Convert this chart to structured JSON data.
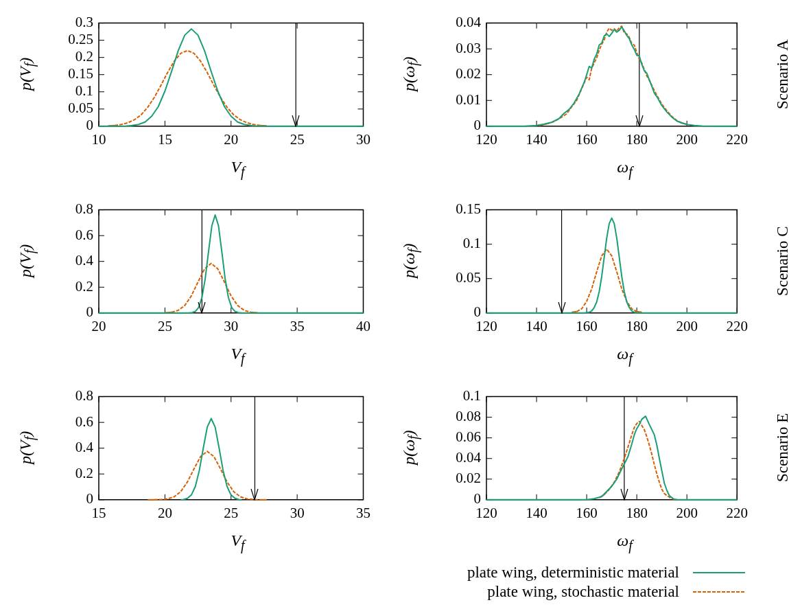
{
  "chart_data": [
    {
      "type": "line",
      "xlabel": "V$_{f}$",
      "ylabel": "p(V$_{f}$)",
      "xlim": [
        10,
        30
      ],
      "xticks": [
        10,
        15,
        20,
        25,
        30
      ],
      "ylim": [
        0,
        0.3
      ],
      "yticks": [
        0,
        0.05,
        0.1,
        0.15,
        0.2,
        0.25,
        0.3
      ],
      "ref_lines": [
        {
          "axis": "x",
          "value": 24.9,
          "color": "#000000"
        }
      ],
      "series": [
        {
          "color": "#1a9e77",
          "line_style": "solid",
          "x": [
            10,
            12,
            12.5,
            13,
            13.5,
            14,
            14.5,
            15,
            15.5,
            16,
            16.5,
            17,
            17.5,
            18,
            18.5,
            19,
            19.5,
            20,
            20.5,
            21,
            21.5,
            22,
            30
          ],
          "values": [
            0,
            0,
            0.002,
            0.005,
            0.012,
            0.029,
            0.057,
            0.102,
            0.159,
            0.219,
            0.265,
            0.283,
            0.265,
            0.219,
            0.159,
            0.102,
            0.057,
            0.029,
            0.012,
            0.005,
            0.002,
            0,
            0
          ]
        },
        {
          "color": "#d95f02",
          "line_style": "dashed",
          "x": [
            10.7,
            11.2,
            11.7,
            12.2,
            12.7,
            13.2,
            13.7,
            14.2,
            14.7,
            15.2,
            15.7,
            16.2,
            16.7,
            17.2,
            17.7,
            18.2,
            18.7,
            19.2,
            19.7,
            20.2,
            20.7,
            21.2,
            21.7,
            22.2,
            22.7
          ],
          "values": [
            0.001,
            0.002,
            0.005,
            0.01,
            0.019,
            0.033,
            0.055,
            0.084,
            0.119,
            0.156,
            0.189,
            0.212,
            0.22,
            0.212,
            0.189,
            0.156,
            0.119,
            0.084,
            0.055,
            0.033,
            0.019,
            0.01,
            0.005,
            0.002,
            0.001
          ]
        }
      ]
    },
    {
      "type": "line",
      "xlabel": "ω$_{f}$",
      "ylabel": "p(ω$_{f}$)",
      "annotations": [
        "Scenario A"
      ],
      "xlim": [
        120,
        220
      ],
      "xticks": [
        120,
        140,
        160,
        180,
        200,
        220
      ],
      "ylim": [
        0,
        0.04
      ],
      "yticks": [
        0,
        0.01,
        0.02,
        0.03,
        0.04
      ],
      "ref_lines": [
        {
          "axis": "x",
          "value": 181,
          "color": "#000000"
        }
      ],
      "series": [
        {
          "color": "#1a9e77",
          "line_style": "solid",
          "x": [
            120,
            135,
            140,
            143,
            146,
            149,
            151,
            153,
            155,
            157,
            159,
            160,
            161,
            162,
            163,
            164,
            165,
            166,
            167,
            168,
            169,
            170,
            171,
            172,
            173,
            174,
            175,
            176,
            177,
            178,
            179,
            180,
            181,
            182,
            183,
            184,
            185,
            186,
            187,
            188,
            190,
            192,
            194,
            196,
            198,
            200,
            203,
            206,
            210,
            220
          ],
          "values": [
            0,
            0,
            0.0003,
            0.0008,
            0.0015,
            0.003,
            0.005,
            0.0065,
            0.009,
            0.0125,
            0.017,
            0.02,
            0.0232,
            0.0225,
            0.026,
            0.028,
            0.0315,
            0.0322,
            0.035,
            0.0358,
            0.0348,
            0.036,
            0.0375,
            0.0365,
            0.0372,
            0.0385,
            0.037,
            0.0352,
            0.034,
            0.0315,
            0.0298,
            0.0275,
            0.0272,
            0.024,
            0.0215,
            0.0205,
            0.018,
            0.0155,
            0.0128,
            0.0115,
            0.008,
            0.0055,
            0.0035,
            0.002,
            0.0012,
            0.0007,
            0.0003,
            0.0001,
            0,
            0
          ]
        },
        {
          "color": "#d95f02",
          "line_style": "dashed",
          "x": [
            141,
            144,
            147,
            150,
            152,
            154,
            156,
            158,
            160,
            161,
            162,
            163,
            164,
            165,
            166,
            167,
            168,
            169,
            170,
            171,
            172,
            173,
            174,
            175,
            176,
            177,
            178,
            179,
            180,
            181,
            182,
            183,
            184,
            185,
            186,
            187,
            188,
            190,
            192,
            194,
            196,
            198,
            200
          ],
          "values": [
            0.0003,
            0.0009,
            0.0018,
            0.0035,
            0.0048,
            0.0075,
            0.01,
            0.0145,
            0.019,
            0.018,
            0.0225,
            0.0245,
            0.0265,
            0.0295,
            0.0318,
            0.0335,
            0.0365,
            0.038,
            0.0372,
            0.0378,
            0.0368,
            0.0382,
            0.0388,
            0.0362,
            0.0358,
            0.0345,
            0.032,
            0.0315,
            0.0285,
            0.026,
            0.0245,
            0.022,
            0.0195,
            0.0178,
            0.0158,
            0.0138,
            0.012,
            0.0085,
            0.006,
            0.0038,
            0.0022,
            0.0013,
            0.0007
          ]
        }
      ]
    },
    {
      "type": "line",
      "xlabel": "V$_{f}$",
      "ylabel": "p(V$_{f}$)",
      "xlim": [
        20,
        40
      ],
      "xticks": [
        20,
        25,
        30,
        35,
        40
      ],
      "ylim": [
        0,
        0.8
      ],
      "yticks": [
        0,
        0.2,
        0.4,
        0.6,
        0.8
      ],
      "ref_lines": [
        {
          "axis": "x",
          "value": 27.8,
          "color": "#000000"
        }
      ],
      "series": [
        {
          "color": "#1a9e77",
          "line_style": "solid",
          "x": [
            20,
            26.8,
            27.05,
            27.3,
            27.55,
            27.8,
            28.05,
            28.3,
            28.55,
            28.8,
            29.05,
            29.3,
            29.55,
            29.8,
            30.05,
            30.3,
            30.55,
            30.8,
            40
          ],
          "values": [
            0,
            0,
            0.003,
            0.012,
            0.042,
            0.12,
            0.268,
            0.478,
            0.677,
            0.76,
            0.677,
            0.478,
            0.268,
            0.12,
            0.042,
            0.012,
            0.003,
            0,
            0
          ]
        },
        {
          "color": "#d95f02",
          "line_style": "dashed",
          "x": [
            25,
            25.5,
            26,
            26.5,
            27,
            27.5,
            28,
            28.5,
            29,
            29.5,
            30,
            30.5,
            31,
            31.5,
            32
          ],
          "values": [
            0.001,
            0.006,
            0.02,
            0.058,
            0.133,
            0.24,
            0.342,
            0.385,
            0.342,
            0.24,
            0.133,
            0.058,
            0.02,
            0.006,
            0.001
          ]
        }
      ]
    },
    {
      "type": "line",
      "xlabel": "ω$_{f}$",
      "ylabel": "p(ω$_{f}$)",
      "annotations": [
        "Scenario C"
      ],
      "xlim": [
        120,
        220
      ],
      "xticks": [
        120,
        140,
        160,
        180,
        200,
        220
      ],
      "ylim": [
        0,
        0.15
      ],
      "yticks": [
        0,
        0.05,
        0.1,
        0.15
      ],
      "ref_lines": [
        {
          "axis": "x",
          "value": 150,
          "color": "#000000"
        }
      ],
      "series": [
        {
          "color": "#1a9e77",
          "line_style": "solid",
          "x": [
            120,
            159,
            161,
            162,
            163,
            164,
            165,
            166,
            167,
            168,
            169,
            170,
            171,
            172,
            173,
            174,
            175,
            176,
            177,
            178,
            179,
            181,
            220
          ],
          "values": [
            0,
            0,
            0.001,
            0.003,
            0.008,
            0.016,
            0.031,
            0.053,
            0.081,
            0.109,
            0.13,
            0.138,
            0.13,
            0.109,
            0.081,
            0.053,
            0.031,
            0.016,
            0.008,
            0.003,
            0.001,
            0,
            0
          ]
        },
        {
          "color": "#d95f02",
          "line_style": "dashed",
          "x": [
            154,
            156,
            158,
            160,
            162,
            164,
            166,
            168,
            170,
            172,
            174,
            176,
            178,
            180,
            182
          ],
          "values": [
            0.001,
            0.002,
            0.006,
            0.017,
            0.035,
            0.06,
            0.083,
            0.093,
            0.083,
            0.06,
            0.035,
            0.017,
            0.006,
            0.002,
            0.001
          ]
        }
      ]
    },
    {
      "type": "line",
      "xlabel": "V$_{f}$",
      "ylabel": "p(V$_{f}$)",
      "xlim": [
        15,
        35
      ],
      "xticks": [
        15,
        20,
        25,
        30,
        35
      ],
      "ylim": [
        0,
        0.8
      ],
      "yticks": [
        0,
        0.2,
        0.4,
        0.6,
        0.8
      ],
      "ref_lines": [
        {
          "axis": "x",
          "value": 26.8,
          "color": "#000000"
        }
      ],
      "series": [
        {
          "color": "#1a9e77",
          "line_style": "solid",
          "x": [
            21.2,
            21.4,
            21.7,
            22,
            22.3,
            22.6,
            22.9,
            23.2,
            23.5,
            23.8,
            24.1,
            24.4,
            24.7,
            25,
            25.3,
            25.6,
            25.8
          ],
          "values": [
            0,
            0.002,
            0.011,
            0.037,
            0.103,
            0.227,
            0.4,
            0.563,
            0.63,
            0.563,
            0.4,
            0.227,
            0.103,
            0.037,
            0.011,
            0.002,
            0
          ]
        },
        {
          "color": "#d95f02",
          "line_style": "dashed",
          "x": [
            18.7,
            19.2,
            19.7,
            20.2,
            20.7,
            21.2,
            21.7,
            22.2,
            22.7,
            23.2,
            23.7,
            24.2,
            24.7,
            25.2,
            25.7,
            26.2,
            26.7,
            27.2,
            27.7
          ],
          "values": [
            0,
            0,
            0.002,
            0.007,
            0.023,
            0.063,
            0.138,
            0.24,
            0.336,
            0.375,
            0.336,
            0.24,
            0.138,
            0.063,
            0.023,
            0.007,
            0.002,
            0,
            0
          ]
        }
      ]
    },
    {
      "type": "line",
      "xlabel": "ω$_{f}$",
      "ylabel": "p(ω$_{f}$)",
      "annotations": [
        "Scenario E"
      ],
      "legend": "bottom right",
      "xlim": [
        120,
        220
      ],
      "xticks": [
        120,
        140,
        160,
        180,
        200,
        220
      ],
      "ylim": [
        0,
        0.1
      ],
      "yticks": [
        0,
        0.02,
        0.04,
        0.06,
        0.08,
        0.1
      ],
      "ref_lines": [
        {
          "axis": "x",
          "value": 175,
          "color": "#000000"
        }
      ],
      "series": [
        {
          "name": "plate wing, deterministic material",
          "color": "#1a9e77",
          "line_style": "solid",
          "x": [
            120,
            160,
            163,
            166,
            168,
            170,
            172,
            174,
            175.5,
            176.5,
            178,
            179,
            180,
            181,
            182,
            183.5,
            185,
            186,
            187,
            188,
            189,
            190,
            191,
            192,
            193,
            194,
            195,
            197,
            220
          ],
          "values": [
            0,
            0,
            0.001,
            0.003,
            0.008,
            0.013,
            0.02,
            0.03,
            0.037,
            0.042,
            0.054,
            0.063,
            0.069,
            0.073,
            0.078,
            0.081,
            0.073,
            0.068,
            0.063,
            0.053,
            0.04,
            0.028,
            0.016,
            0.009,
            0.004,
            0.002,
            0,
            0,
            0
          ]
        },
        {
          "name": "plate wing, stochastic material",
          "color": "#d95f02",
          "line_style": "dashed",
          "x": [
            165,
            167,
            169,
            171,
            173,
            175,
            177,
            178,
            179,
            180,
            181,
            182,
            183,
            184,
            185,
            186,
            187,
            188,
            189,
            190,
            191,
            192,
            194,
            196
          ],
          "values": [
            0.002,
            0.005,
            0.01,
            0.017,
            0.027,
            0.04,
            0.055,
            0.063,
            0.07,
            0.074,
            0.076,
            0.072,
            0.068,
            0.061,
            0.053,
            0.044,
            0.034,
            0.025,
            0.017,
            0.01,
            0.006,
            0.004,
            0.001,
            0
          ]
        }
      ]
    }
  ]
}
